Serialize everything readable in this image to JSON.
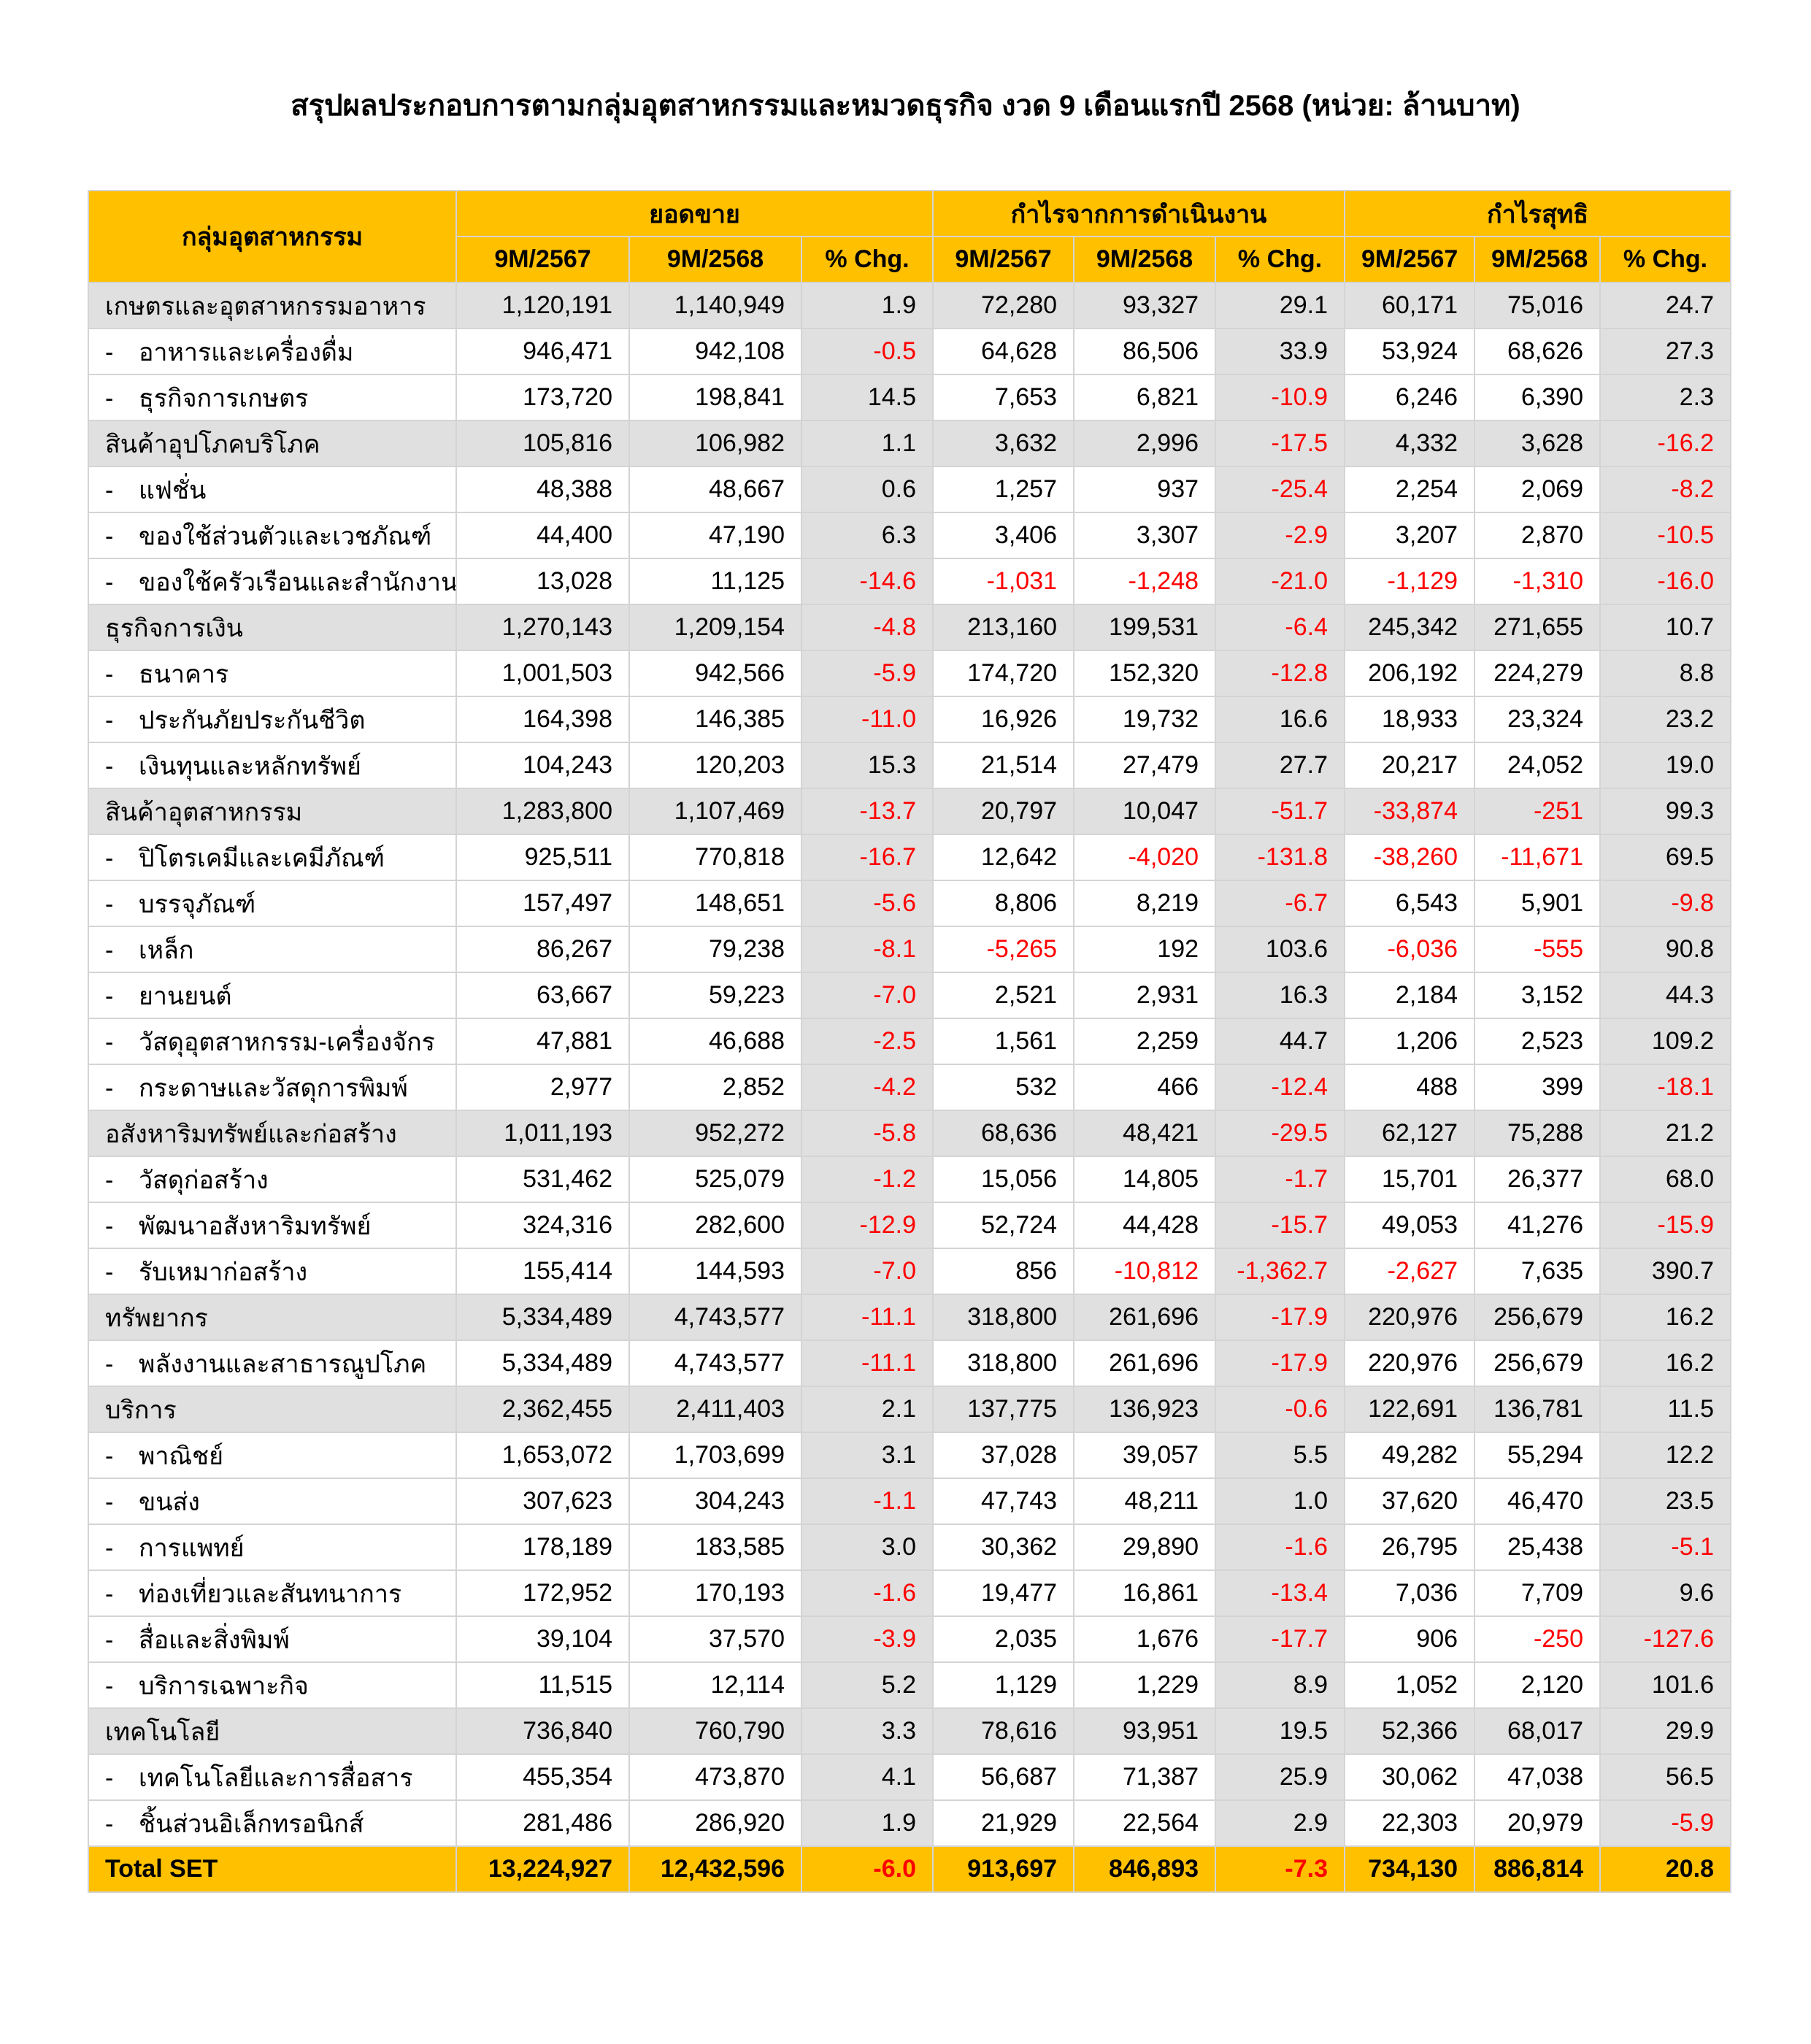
{
  "title": "สรุปผลประกอบการตามกลุ่มอุตสาหกรรมและหมวดธุรกิจ งวด 9 เดือนแรกปี 2568 (หน่วย: ล้านบาท)",
  "colors": {
    "header": "#ffc000",
    "group_row": "#e0e0e0",
    "negative": "#ff0000"
  },
  "header": {
    "group_col": "กลุ่มอุตสาหกรรม",
    "sections": [
      "ยอดขาย",
      "กำไรจากการดำเนินงาน",
      "กำไรสุทธิ"
    ],
    "sub_cols": [
      "9M/2567",
      "9M/2568",
      "% Chg."
    ]
  },
  "rows": [
    {
      "type": "group",
      "name": "เกษตรและอุตสาหกรรมอาหาร",
      "values": [
        "1,120,191",
        "1,140,949",
        "1.9",
        "72,280",
        "93,327",
        "29.1",
        "60,171",
        "75,016",
        "24.7"
      ]
    },
    {
      "type": "sub",
      "name": "อาหารและเครื่องดื่ม",
      "values": [
        "946,471",
        "942,108",
        "-0.5",
        "64,628",
        "86,506",
        "33.9",
        "53,924",
        "68,626",
        "27.3"
      ]
    },
    {
      "type": "sub",
      "name": "ธุรกิจการเกษตร",
      "values": [
        "173,720",
        "198,841",
        "14.5",
        "7,653",
        "6,821",
        "-10.9",
        "6,246",
        "6,390",
        "2.3"
      ]
    },
    {
      "type": "group",
      "name": "สินค้าอุปโภคบริโภค",
      "values": [
        "105,816",
        "106,982",
        "1.1",
        "3,632",
        "2,996",
        "-17.5",
        "4,332",
        "3,628",
        "-16.2"
      ]
    },
    {
      "type": "sub",
      "name": "แฟชั่น",
      "values": [
        "48,388",
        "48,667",
        "0.6",
        "1,257",
        "937",
        "-25.4",
        "2,254",
        "2,069",
        "-8.2"
      ]
    },
    {
      "type": "sub",
      "name": "ของใช้ส่วนตัวและเวชภัณฑ์",
      "values": [
        "44,400",
        "47,190",
        "6.3",
        "3,406",
        "3,307",
        "-2.9",
        "3,207",
        "2,870",
        "-10.5"
      ]
    },
    {
      "type": "sub",
      "name": "ของใช้ครัวเรือนและสำนักงาน",
      "values": [
        "13,028",
        "11,125",
        "-14.6",
        "-1,031",
        "-1,248",
        "-21.0",
        "-1,129",
        "-1,310",
        "-16.0"
      ]
    },
    {
      "type": "group",
      "name": "ธุรกิจการเงิน",
      "values": [
        "1,270,143",
        "1,209,154",
        "-4.8",
        "213,160",
        "199,531",
        "-6.4",
        "245,342",
        "271,655",
        "10.7"
      ]
    },
    {
      "type": "sub",
      "name": "ธนาคาร",
      "values": [
        "1,001,503",
        "942,566",
        "-5.9",
        "174,720",
        "152,320",
        "-12.8",
        "206,192",
        "224,279",
        "8.8"
      ]
    },
    {
      "type": "sub",
      "name": "ประกันภัยประกันชีวิต",
      "values": [
        "164,398",
        "146,385",
        "-11.0",
        "16,926",
        "19,732",
        "16.6",
        "18,933",
        "23,324",
        "23.2"
      ]
    },
    {
      "type": "sub",
      "name": "เงินทุนและหลักทรัพย์",
      "values": [
        "104,243",
        "120,203",
        "15.3",
        "21,514",
        "27,479",
        "27.7",
        "20,217",
        "24,052",
        "19.0"
      ]
    },
    {
      "type": "group",
      "name": "สินค้าอุตสาหกรรม",
      "values": [
        "1,283,800",
        "1,107,469",
        "-13.7",
        "20,797",
        "10,047",
        "-51.7",
        "-33,874",
        "-251",
        "99.3"
      ]
    },
    {
      "type": "sub",
      "name": "ปิโตรเคมีและเคมีภัณฑ์",
      "values": [
        "925,511",
        "770,818",
        "-16.7",
        "12,642",
        "-4,020",
        "-131.8",
        "-38,260",
        "-11,671",
        "69.5"
      ]
    },
    {
      "type": "sub",
      "name": "บรรจุภัณฑ์",
      "values": [
        "157,497",
        "148,651",
        "-5.6",
        "8,806",
        "8,219",
        "-6.7",
        "6,543",
        "5,901",
        "-9.8"
      ]
    },
    {
      "type": "sub",
      "name": "เหล็ก",
      "values": [
        "86,267",
        "79,238",
        "-8.1",
        "-5,265",
        "192",
        "103.6",
        "-6,036",
        "-555",
        "90.8"
      ]
    },
    {
      "type": "sub",
      "name": "ยานยนต์",
      "values": [
        "63,667",
        "59,223",
        "-7.0",
        "2,521",
        "2,931",
        "16.3",
        "2,184",
        "3,152",
        "44.3"
      ]
    },
    {
      "type": "sub",
      "name": "วัสดุอุตสาหกรรม-เครื่องจักร",
      "values": [
        "47,881",
        "46,688",
        "-2.5",
        "1,561",
        "2,259",
        "44.7",
        "1,206",
        "2,523",
        "109.2"
      ]
    },
    {
      "type": "sub",
      "name": "กระดาษและวัสดุการพิมพ์",
      "values": [
        "2,977",
        "2,852",
        "-4.2",
        "532",
        "466",
        "-12.4",
        "488",
        "399",
        "-18.1"
      ]
    },
    {
      "type": "group",
      "name": "อสังหาริมทรัพย์และก่อสร้าง",
      "values": [
        "1,011,193",
        "952,272",
        "-5.8",
        "68,636",
        "48,421",
        "-29.5",
        "62,127",
        "75,288",
        "21.2"
      ]
    },
    {
      "type": "sub",
      "name": "วัสดุก่อสร้าง",
      "values": [
        "531,462",
        "525,079",
        "-1.2",
        "15,056",
        "14,805",
        "-1.7",
        "15,701",
        "26,377",
        "68.0"
      ]
    },
    {
      "type": "sub",
      "name": "พัฒนาอสังหาริมทรัพย์",
      "values": [
        "324,316",
        "282,600",
        "-12.9",
        "52,724",
        "44,428",
        "-15.7",
        "49,053",
        "41,276",
        "-15.9"
      ]
    },
    {
      "type": "sub",
      "name": "รับเหมาก่อสร้าง",
      "values": [
        "155,414",
        "144,593",
        "-7.0",
        "856",
        "-10,812",
        "-1,362.7",
        "-2,627",
        "7,635",
        "390.7"
      ]
    },
    {
      "type": "group",
      "name": "ทรัพยากร",
      "values": [
        "5,334,489",
        "4,743,577",
        "-11.1",
        "318,800",
        "261,696",
        "-17.9",
        "220,976",
        "256,679",
        "16.2"
      ]
    },
    {
      "type": "sub",
      "name": "พลังงานและสาธารณูปโภค",
      "values": [
        "5,334,489",
        "4,743,577",
        "-11.1",
        "318,800",
        "261,696",
        "-17.9",
        "220,976",
        "256,679",
        "16.2"
      ]
    },
    {
      "type": "group",
      "name": "บริการ",
      "values": [
        "2,362,455",
        "2,411,403",
        "2.1",
        "137,775",
        "136,923",
        "-0.6",
        "122,691",
        "136,781",
        "11.5"
      ]
    },
    {
      "type": "sub",
      "name": "พาณิชย์",
      "values": [
        "1,653,072",
        "1,703,699",
        "3.1",
        "37,028",
        "39,057",
        "5.5",
        "49,282",
        "55,294",
        "12.2"
      ]
    },
    {
      "type": "sub",
      "name": "ขนส่ง",
      "values": [
        "307,623",
        "304,243",
        "-1.1",
        "47,743",
        "48,211",
        "1.0",
        "37,620",
        "46,470",
        "23.5"
      ]
    },
    {
      "type": "sub",
      "name": "การแพทย์",
      "values": [
        "178,189",
        "183,585",
        "3.0",
        "30,362",
        "29,890",
        "-1.6",
        "26,795",
        "25,438",
        "-5.1"
      ]
    },
    {
      "type": "sub",
      "name": "ท่องเที่ยวและสันทนาการ",
      "values": [
        "172,952",
        "170,193",
        "-1.6",
        "19,477",
        "16,861",
        "-13.4",
        "7,036",
        "7,709",
        "9.6"
      ]
    },
    {
      "type": "sub",
      "name": "สื่อและสิ่งพิมพ์",
      "values": [
        "39,104",
        "37,570",
        "-3.9",
        "2,035",
        "1,676",
        "-17.7",
        "906",
        "-250",
        "-127.6"
      ]
    },
    {
      "type": "sub",
      "name": "บริการเฉพาะกิจ",
      "values": [
        "11,515",
        "12,114",
        "5.2",
        "1,129",
        "1,229",
        "8.9",
        "1,052",
        "2,120",
        "101.6"
      ]
    },
    {
      "type": "group",
      "name": "เทคโนโลยี",
      "values": [
        "736,840",
        "760,790",
        "3.3",
        "78,616",
        "93,951",
        "19.5",
        "52,366",
        "68,017",
        "29.9"
      ]
    },
    {
      "type": "sub",
      "name": "เทคโนโลยีและการสื่อสาร",
      "values": [
        "455,354",
        "473,870",
        "4.1",
        "56,687",
        "71,387",
        "25.9",
        "30,062",
        "47,038",
        "56.5"
      ]
    },
    {
      "type": "sub",
      "name": "ชิ้นส่วนอิเล็กทรอนิกส์",
      "values": [
        "281,486",
        "286,920",
        "1.9",
        "21,929",
        "22,564",
        "2.9",
        "22,303",
        "20,979",
        "-5.9"
      ]
    },
    {
      "type": "total",
      "name": "Total SET",
      "values": [
        "13,224,927",
        "12,432,596",
        "-6.0",
        "913,697",
        "846,893",
        "-7.3",
        "734,130",
        "886,814",
        "20.8"
      ]
    }
  ]
}
